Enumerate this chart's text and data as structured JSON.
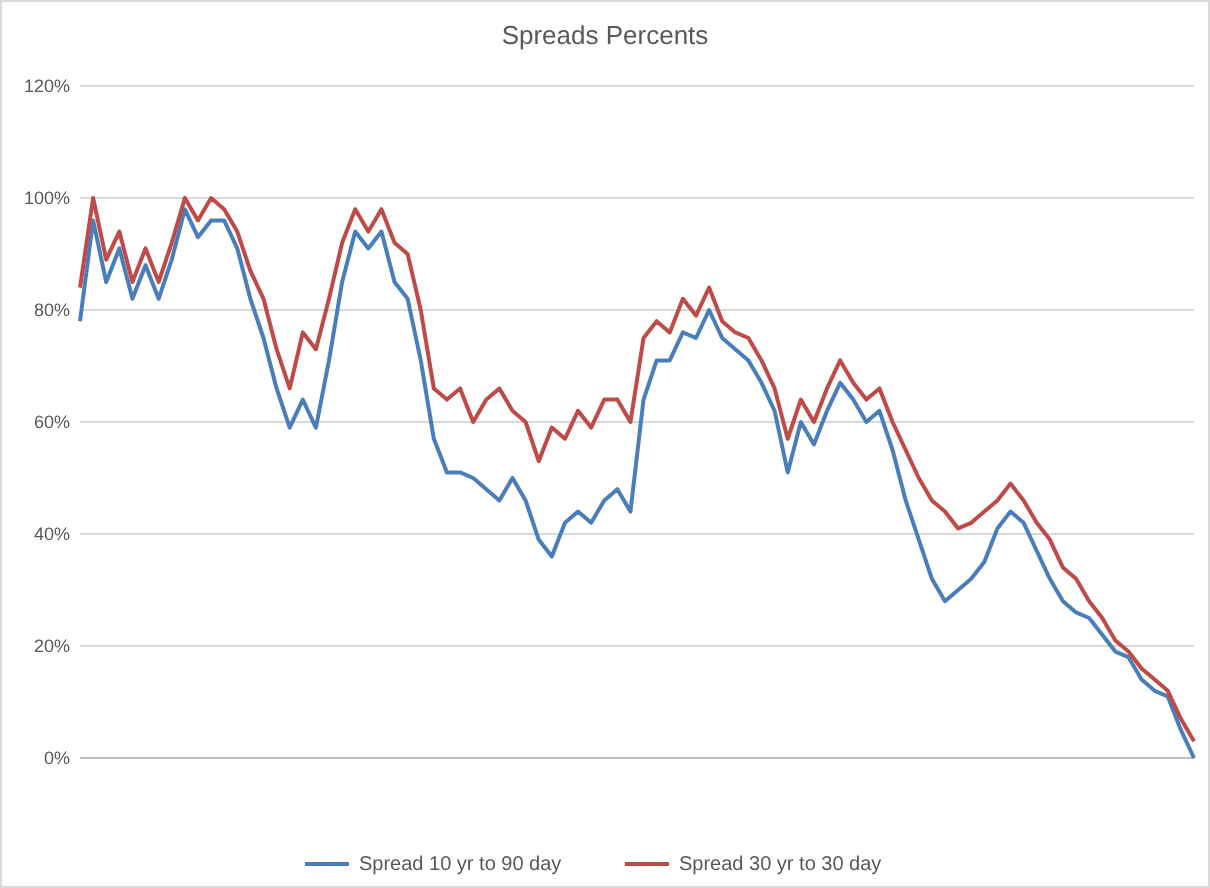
{
  "chart_data": {
    "type": "line",
    "title": "Spreads Percents",
    "categories": [
      null,
      null,
      null,
      null,
      null,
      null,
      null,
      null,
      null,
      null,
      null,
      null,
      null,
      null,
      null,
      null,
      null,
      null,
      null,
      null,
      null,
      null,
      null,
      null,
      null,
      null,
      null,
      null,
      null,
      null,
      null,
      null,
      null,
      null,
      null,
      null,
      null,
      null,
      null,
      null,
      null,
      null,
      null,
      null,
      null,
      null,
      null,
      null,
      null,
      null,
      null,
      null,
      null,
      null,
      null,
      null,
      null,
      null,
      null,
      null,
      null,
      null,
      null,
      null,
      null,
      null,
      null,
      null,
      null,
      null,
      null,
      null,
      null,
      null,
      null,
      null,
      null,
      null,
      null,
      null,
      null,
      null,
      null,
      null,
      null,
      null
    ],
    "series": [
      {
        "name": "Spread 10 yr to 90 day",
        "color": "#4a7ebb",
        "values": [
          78,
          96,
          85,
          91,
          82,
          88,
          82,
          89,
          98,
          93,
          96,
          96,
          91,
          82,
          75,
          66,
          59,
          64,
          59,
          71,
          85,
          94,
          91,
          94,
          85,
          82,
          71,
          57,
          51,
          51,
          50,
          48,
          46,
          50,
          46,
          39,
          36,
          42,
          44,
          42,
          46,
          48,
          44,
          64,
          71,
          71,
          76,
          75,
          80,
          75,
          73,
          71,
          67,
          62,
          51,
          60,
          56,
          62,
          67,
          64,
          60,
          62,
          55,
          46,
          39,
          32,
          28,
          30,
          32,
          35,
          41,
          44,
          42,
          37,
          32,
          28,
          26,
          25,
          22,
          19,
          18,
          14,
          12,
          11,
          5,
          0
        ]
      },
      {
        "name": "Spread 30 yr to 30 day",
        "color": "#be4b48",
        "values": [
          84,
          100,
          89,
          94,
          85,
          91,
          85,
          92,
          100,
          96,
          100,
          98,
          94,
          87,
          82,
          73,
          66,
          76,
          73,
          82,
          92,
          98,
          94,
          98,
          92,
          90,
          80,
          66,
          64,
          66,
          60,
          64,
          66,
          62,
          60,
          53,
          59,
          57,
          62,
          59,
          64,
          64,
          60,
          75,
          78,
          76,
          82,
          79,
          84,
          78,
          76,
          75,
          71,
          66,
          57,
          64,
          60,
          66,
          71,
          67,
          64,
          66,
          60,
          55,
          50,
          46,
          44,
          41,
          42,
          44,
          46,
          49,
          46,
          42,
          39,
          34,
          32,
          28,
          25,
          21,
          19,
          16,
          14,
          12,
          7,
          3
        ]
      }
    ],
    "ylim": [
      0,
      120
    ],
    "yticks": [
      {
        "value": 0,
        "label": "0%"
      },
      {
        "value": 20,
        "label": "20%"
      },
      {
        "value": 40,
        "label": "40%"
      },
      {
        "value": 60,
        "label": "60%"
      },
      {
        "value": 80,
        "label": "80%"
      },
      {
        "value": 100,
        "label": "100%"
      },
      {
        "value": 120,
        "label": "120%"
      }
    ],
    "grid": "y",
    "legend": "bottom",
    "marker": "none",
    "line_style": "solid"
  }
}
